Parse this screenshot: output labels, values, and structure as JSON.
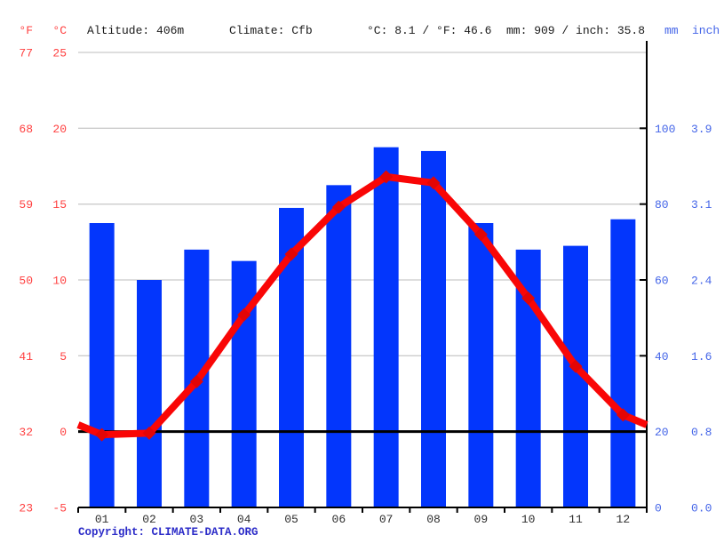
{
  "header": {
    "f_label": "°F",
    "c_label": "°C",
    "altitude": "Altitude: 406m",
    "climate": "Climate: Cfb",
    "temp_summary": "°C: 8.1 / °F: 46.6",
    "precip_summary": "mm: 909 / inch: 35.8",
    "mm_label": "mm",
    "inch_label": "inch"
  },
  "footer": {
    "copyright": "Copyright: CLIMATE-DATA.ORG"
  },
  "colors": {
    "bar": "#0336fc",
    "temp_line": "#f90606",
    "temp_marker": "#e30505",
    "temp_axis_text": "#ff4040",
    "precip_axis_text": "#4465e8",
    "copyright_text": "#2c2cc8",
    "grid": "#cbcbcb",
    "axis": "#000000",
    "month_text": "#2e2e2e",
    "header_text": "#1a1a1a"
  },
  "chart_data": {
    "type": "bar",
    "title": "",
    "categories": [
      "01",
      "02",
      "03",
      "04",
      "05",
      "06",
      "07",
      "08",
      "09",
      "10",
      "11",
      "12"
    ],
    "series": [
      {
        "name": "Precipitation (mm)",
        "type": "bar",
        "values": [
          75,
          60,
          68,
          65,
          79,
          85,
          95,
          94,
          75,
          68,
          69,
          76
        ]
      },
      {
        "name": "Average temperature (°C)",
        "type": "line",
        "values": [
          -0.2,
          -0.1,
          3.3,
          7.7,
          11.7,
          14.8,
          16.8,
          16.4,
          13.0,
          8.8,
          4.3,
          1.1
        ]
      }
    ],
    "axes": {
      "left_fahrenheit_ticks": [
        "77",
        "68",
        "59",
        "50",
        "41",
        "32",
        "23"
      ],
      "left_celsius_ticks": [
        "25",
        "20",
        "15",
        "10",
        "5",
        "0",
        "-5"
      ],
      "right_mm_ticks": [
        "100",
        "80",
        "60",
        "40",
        "20",
        "0"
      ],
      "right_inch_ticks": [
        "3.9",
        "3.1",
        "2.4",
        "1.6",
        "0.8",
        "0.0"
      ],
      "celsius_range": [
        -5,
        25
      ],
      "mm_range": [
        0,
        120
      ],
      "zero_line_celsius": 0,
      "grid": "horizontal",
      "legend": "none"
    }
  }
}
